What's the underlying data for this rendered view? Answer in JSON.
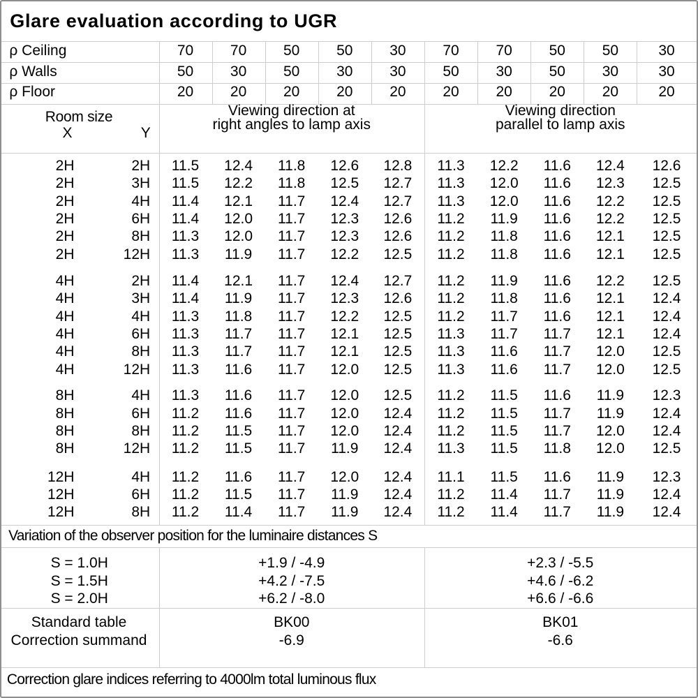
{
  "title": "Glare evaluation according to UGR",
  "reflectance_header": {
    "rows": [
      {
        "label": "ρ Ceiling",
        "values": [
          "70",
          "70",
          "50",
          "50",
          "30",
          "70",
          "70",
          "50",
          "50",
          "30"
        ]
      },
      {
        "label": "ρ Walls",
        "values": [
          "50",
          "30",
          "50",
          "30",
          "30",
          "50",
          "30",
          "50",
          "30",
          "30"
        ]
      },
      {
        "label": "ρ Floor",
        "values": [
          "20",
          "20",
          "20",
          "20",
          "20",
          "20",
          "20",
          "20",
          "20",
          "20"
        ]
      }
    ]
  },
  "column_header": {
    "room_size_label": "Room size",
    "x_label": "X",
    "y_label": "Y",
    "group1_line1": "Viewing direction at",
    "group1_line2": "right angles to lamp axis",
    "group2_line1": "Viewing direction",
    "group2_line2": "parallel to lamp axis"
  },
  "ugr_table": {
    "blocks": [
      {
        "rows": [
          {
            "x": "2H",
            "y": "2H",
            "values": [
              "11.5",
              "12.4",
              "11.8",
              "12.6",
              "12.8",
              "11.3",
              "12.2",
              "11.6",
              "12.4",
              "12.6"
            ]
          },
          {
            "x": "2H",
            "y": "3H",
            "values": [
              "11.5",
              "12.2",
              "11.8",
              "12.5",
              "12.7",
              "11.3",
              "12.0",
              "11.6",
              "12.3",
              "12.5"
            ]
          },
          {
            "x": "2H",
            "y": "4H",
            "values": [
              "11.4",
              "12.1",
              "11.7",
              "12.4",
              "12.7",
              "11.3",
              "12.0",
              "11.6",
              "12.2",
              "12.5"
            ]
          },
          {
            "x": "2H",
            "y": "6H",
            "values": [
              "11.4",
              "12.0",
              "11.7",
              "12.3",
              "12.6",
              "11.2",
              "11.9",
              "11.6",
              "12.2",
              "12.5"
            ]
          },
          {
            "x": "2H",
            "y": "8H",
            "values": [
              "11.3",
              "12.0",
              "11.7",
              "12.3",
              "12.6",
              "11.2",
              "11.8",
              "11.6",
              "12.1",
              "12.5"
            ]
          },
          {
            "x": "2H",
            "y": "12H",
            "values": [
              "11.3",
              "11.9",
              "11.7",
              "12.2",
              "12.5",
              "11.2",
              "11.8",
              "11.6",
              "12.1",
              "12.5"
            ]
          }
        ]
      },
      {
        "rows": [
          {
            "x": "4H",
            "y": "2H",
            "values": [
              "11.4",
              "12.1",
              "11.7",
              "12.4",
              "12.7",
              "11.2",
              "11.9",
              "11.6",
              "12.2",
              "12.5"
            ]
          },
          {
            "x": "4H",
            "y": "3H",
            "values": [
              "11.4",
              "11.9",
              "11.7",
              "12.3",
              "12.6",
              "11.2",
              "11.8",
              "11.6",
              "12.1",
              "12.4"
            ]
          },
          {
            "x": "4H",
            "y": "4H",
            "values": [
              "11.3",
              "11.8",
              "11.7",
              "12.2",
              "12.5",
              "11.2",
              "11.7",
              "11.6",
              "12.1",
              "12.4"
            ]
          },
          {
            "x": "4H",
            "y": "6H",
            "values": [
              "11.3",
              "11.7",
              "11.7",
              "12.1",
              "12.5",
              "11.3",
              "11.7",
              "11.7",
              "12.1",
              "12.4"
            ]
          },
          {
            "x": "4H",
            "y": "8H",
            "values": [
              "11.3",
              "11.7",
              "11.7",
              "12.1",
              "12.5",
              "11.3",
              "11.6",
              "11.7",
              "12.0",
              "12.5"
            ]
          },
          {
            "x": "4H",
            "y": "12H",
            "values": [
              "11.3",
              "11.6",
              "11.7",
              "12.0",
              "12.5",
              "11.3",
              "11.6",
              "11.7",
              "12.0",
              "12.5"
            ]
          }
        ]
      },
      {
        "rows": [
          {
            "x": "8H",
            "y": "4H",
            "values": [
              "11.3",
              "11.6",
              "11.7",
              "12.0",
              "12.5",
              "11.2",
              "11.5",
              "11.6",
              "11.9",
              "12.3"
            ]
          },
          {
            "x": "8H",
            "y": "6H",
            "values": [
              "11.2",
              "11.6",
              "11.7",
              "12.0",
              "12.4",
              "11.2",
              "11.5",
              "11.7",
              "11.9",
              "12.4"
            ]
          },
          {
            "x": "8H",
            "y": "8H",
            "values": [
              "11.2",
              "11.5",
              "11.7",
              "12.0",
              "12.4",
              "11.2",
              "11.5",
              "11.7",
              "12.0",
              "12.4"
            ]
          },
          {
            "x": "8H",
            "y": "12H",
            "values": [
              "11.2",
              "11.5",
              "11.7",
              "11.9",
              "12.4",
              "11.3",
              "11.5",
              "11.8",
              "12.0",
              "12.5"
            ]
          }
        ]
      },
      {
        "rows": [
          {
            "x": "12H",
            "y": "4H",
            "values": [
              "11.2",
              "11.6",
              "11.7",
              "12.0",
              "12.4",
              "11.1",
              "11.5",
              "11.6",
              "11.9",
              "12.3"
            ]
          },
          {
            "x": "12H",
            "y": "6H",
            "values": [
              "11.2",
              "11.5",
              "11.7",
              "11.9",
              "12.4",
              "11.2",
              "11.4",
              "11.7",
              "11.9",
              "12.4"
            ]
          },
          {
            "x": "12H",
            "y": "8H",
            "values": [
              "11.2",
              "11.4",
              "11.7",
              "11.9",
              "12.4",
              "11.2",
              "11.4",
              "11.7",
              "11.9",
              "12.4"
            ]
          }
        ]
      }
    ]
  },
  "variation_note": "Variation of the observer position for the luminaire distances S",
  "spacing_block": {
    "labels": [
      "S = 1.0H",
      "S = 1.5H",
      "S = 2.0H"
    ],
    "group1_values": [
      "+1.9 / -4.9",
      "+4.2 / -7.5",
      "+6.2 / -8.0"
    ],
    "group2_values": [
      "+2.3 / -5.5",
      "+4.6 / -6.2",
      "+6.6 / -6.6"
    ]
  },
  "standard_block": {
    "labels": [
      "Standard table",
      "Correction summand"
    ],
    "group1_values": [
      "BK00",
      "-6.9"
    ],
    "group2_values": [
      "BK01",
      "-6.6"
    ]
  },
  "footer_note": "Correction glare indices referring to 4000lm total luminous flux",
  "colors": {
    "background": "#ffffff",
    "grid_line": "#cdcdcd",
    "outer_border": "#8e8e8e",
    "text": "#000000"
  }
}
